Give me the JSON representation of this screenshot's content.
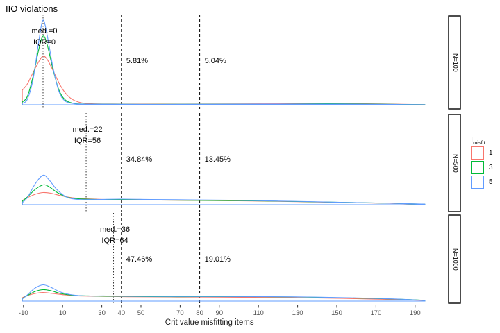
{
  "title": "IIO violations",
  "axis": {
    "xlabel": "Crit value misfitting items",
    "ticks": [
      -10,
      10,
      30,
      40,
      50,
      70,
      80,
      90,
      110,
      130,
      150,
      170,
      190
    ]
  },
  "legend": {
    "title_base": "I",
    "title_sub": "misfit",
    "items": [
      {
        "label": "1",
        "color": "#F8766D"
      },
      {
        "label": "3",
        "color": "#00BA38"
      },
      {
        "label": "5",
        "color": "#619CFF"
      }
    ]
  },
  "reference_lines": {
    "dashed_x": [
      40,
      80
    ],
    "dotted_style": "median per facet"
  },
  "chart_data": {
    "type": "line",
    "title": "IIO violations",
    "xlabel": "Crit value misfitting items",
    "x_range": [
      -11,
      200
    ],
    "grid": false,
    "legend_position": "right",
    "facets": [
      {
        "strip": "N=100",
        "median": 0,
        "iqr": 0,
        "med_label": "med.=0",
        "iqr_label": "IQR=0",
        "pct40_label": "5.81%",
        "pct80_label": "5.04%",
        "series": [
          {
            "name": "1",
            "color": "#F8766D",
            "points": [
              [
                -10.6,
                21
              ],
              [
                -8,
                30
              ],
              [
                -5,
                47
              ],
              [
                -2,
                63
              ],
              [
                0,
                70
              ],
              [
                2,
                66
              ],
              [
                5,
                50
              ],
              [
                9,
                27
              ],
              [
                13,
                12
              ],
              [
                18,
                4
              ],
              [
                25,
                1.5
              ],
              [
                40,
                1
              ],
              [
                70,
                1
              ],
              [
                100,
                1.2
              ],
              [
                130,
                1.5
              ],
              [
                150,
                1.8
              ],
              [
                165,
                1.5
              ],
              [
                180,
                0.8
              ],
              [
                195,
                0.2
              ]
            ]
          },
          {
            "name": "3",
            "color": "#00BA38",
            "points": [
              [
                -10.6,
                4
              ],
              [
                -8,
                12
              ],
              [
                -5,
                42
              ],
              [
                -2,
                82
              ],
              [
                0,
                99
              ],
              [
                2,
                88
              ],
              [
                5,
                52
              ],
              [
                8,
                22
              ],
              [
                11,
                8
              ],
              [
                15,
                2.5
              ],
              [
                22,
                1
              ],
              [
                50,
                0.6
              ],
              [
                90,
                0.8
              ],
              [
                120,
                1
              ],
              [
                145,
                1.4
              ],
              [
                160,
                1.2
              ],
              [
                180,
                0.6
              ],
              [
                195,
                0.2
              ]
            ]
          },
          {
            "name": "5",
            "color": "#619CFF",
            "points": [
              [
                -10.6,
                2
              ],
              [
                -8,
                8
              ],
              [
                -5,
                38
              ],
              [
                -2,
                95
              ],
              [
                0,
                122
              ],
              [
                2,
                102
              ],
              [
                5,
                55
              ],
              [
                8,
                20
              ],
              [
                11,
                6
              ],
              [
                15,
                2
              ],
              [
                22,
                0.8
              ],
              [
                60,
                0.5
              ],
              [
                100,
                0.8
              ],
              [
                140,
                1
              ],
              [
                160,
                0.8
              ],
              [
                180,
                0.4
              ],
              [
                195,
                0.1
              ]
            ]
          }
        ]
      },
      {
        "strip": "N=500",
        "median": 22,
        "iqr": 56,
        "med_label": "med.=22",
        "iqr_label": "IQR=56",
        "pct40_label": "34.84%",
        "pct80_label": "13.45%",
        "series": [
          {
            "name": "1",
            "color": "#F8766D",
            "points": [
              [
                -10.6,
                6
              ],
              [
                -8,
                10
              ],
              [
                -4,
                15
              ],
              [
                0,
                17.5
              ],
              [
                4,
                16.5
              ],
              [
                9,
                13
              ],
              [
                15,
                10
              ],
              [
                22,
                8.5
              ],
              [
                32,
                7.5
              ],
              [
                45,
                7
              ],
              [
                60,
                6.5
              ],
              [
                80,
                6
              ],
              [
                100,
                5.5
              ],
              [
                120,
                4.8
              ],
              [
                140,
                3.8
              ],
              [
                160,
                2.8
              ],
              [
                178,
                1.8
              ],
              [
                195,
                0.6
              ]
            ]
          },
          {
            "name": "3",
            "color": "#00BA38",
            "points": [
              [
                -10.6,
                5
              ],
              [
                -8,
                11
              ],
              [
                -4,
                22
              ],
              [
                0,
                28.5
              ],
              [
                3,
                26
              ],
              [
                7,
                18
              ],
              [
                12,
                11
              ],
              [
                18,
                8.5
              ],
              [
                28,
                7.5
              ],
              [
                42,
                7
              ],
              [
                60,
                6.5
              ],
              [
                80,
                6.2
              ],
              [
                100,
                5.8
              ],
              [
                120,
                5
              ],
              [
                140,
                4
              ],
              [
                160,
                3
              ],
              [
                178,
                2
              ],
              [
                195,
                0.7
              ]
            ]
          },
          {
            "name": "5",
            "color": "#619CFF",
            "points": [
              [
                -10.6,
                3
              ],
              [
                -8,
                10
              ],
              [
                -4,
                30
              ],
              [
                0,
                42.5
              ],
              [
                3,
                36
              ],
              [
                7,
                22
              ],
              [
                12,
                11
              ],
              [
                18,
                7.5
              ],
              [
                28,
                7.5
              ],
              [
                40,
                8
              ],
              [
                55,
                7.5
              ],
              [
                75,
                7
              ],
              [
                95,
                6.5
              ],
              [
                115,
                5.5
              ],
              [
                135,
                4.5
              ],
              [
                155,
                3.2
              ],
              [
                175,
                2.2
              ],
              [
                195,
                0.8
              ]
            ]
          }
        ]
      },
      {
        "strip": "N=1000",
        "median": 36,
        "iqr": 64,
        "med_label": "med.=36",
        "iqr_label": "IQR=64",
        "pct40_label": "47.46%",
        "pct80_label": "19.01%",
        "series": [
          {
            "name": "1",
            "color": "#F8766D",
            "points": [
              [
                -10.6,
                5
              ],
              [
                -8,
                8
              ],
              [
                -4,
                11
              ],
              [
                0,
                12.5
              ],
              [
                5,
                11
              ],
              [
                11,
                9
              ],
              [
                18,
                7.5
              ],
              [
                28,
                7
              ],
              [
                45,
                6.3
              ],
              [
                65,
                6
              ],
              [
                90,
                5.8
              ],
              [
                115,
                5.3
              ],
              [
                140,
                4.5
              ],
              [
                160,
                3.5
              ],
              [
                180,
                2.3
              ],
              [
                195,
                1
              ]
            ]
          },
          {
            "name": "3",
            "color": "#00BA38",
            "points": [
              [
                -10.6,
                4
              ],
              [
                -8,
                8
              ],
              [
                -4,
                14
              ],
              [
                0,
                16.5
              ],
              [
                4,
                15
              ],
              [
                9,
                11
              ],
              [
                15,
                8.5
              ],
              [
                24,
                7.5
              ],
              [
                35,
                7
              ],
              [
                55,
                6.5
              ],
              [
                80,
                6.5
              ],
              [
                105,
                6.5
              ],
              [
                130,
                6
              ],
              [
                150,
                5
              ],
              [
                170,
                3.8
              ],
              [
                185,
                2.5
              ],
              [
                195,
                1.2
              ]
            ]
          },
          {
            "name": "5",
            "color": "#619CFF",
            "points": [
              [
                -10.6,
                3
              ],
              [
                -8,
                9
              ],
              [
                -4,
                19
              ],
              [
                0,
                23.5
              ],
              [
                4,
                20
              ],
              [
                9,
                13
              ],
              [
                15,
                9
              ],
              [
                22,
                7.5
              ],
              [
                32,
                7.5
              ],
              [
                45,
                7
              ],
              [
                65,
                6.8
              ],
              [
                90,
                6.8
              ],
              [
                115,
                6.5
              ],
              [
                135,
                6
              ],
              [
                155,
                5
              ],
              [
                172,
                3.8
              ],
              [
                185,
                2.5
              ],
              [
                195,
                1
              ]
            ]
          }
        ]
      }
    ],
    "note": "y = kernel density (axis unlabeled); point heights are relative units per facet row; dashed reference lines at x=40 and x=80 with percentage of cases beyond them"
  }
}
